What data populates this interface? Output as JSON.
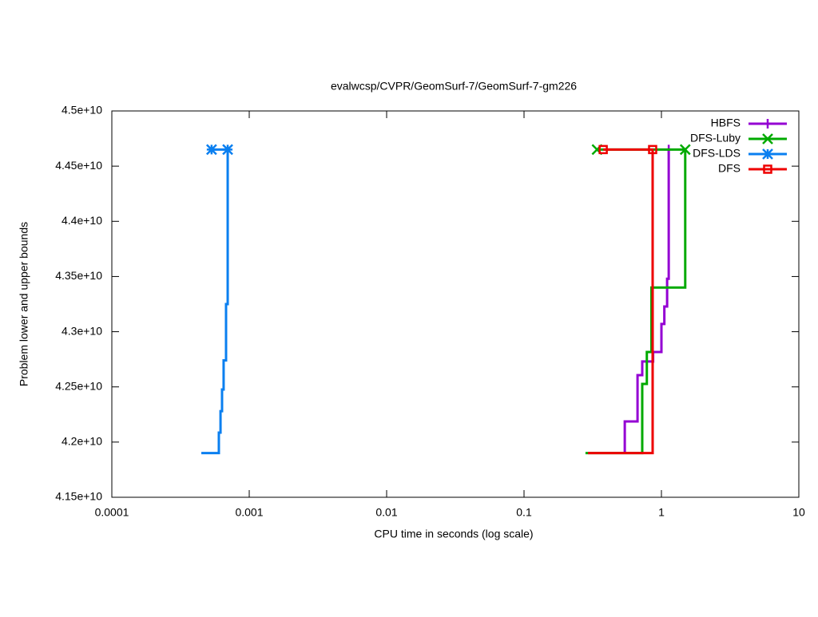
{
  "chart_data": {
    "type": "line",
    "title": "evalwcsp/CVPR/GeomSurf-7/GeomSurf-7-gm226",
    "xlabel": "CPU time in seconds (log scale)",
    "ylabel": "Problem lower and upper bounds",
    "xlog": true,
    "xlim": [
      0.0001,
      10
    ],
    "ylim": [
      41500000000,
      45000000000
    ],
    "xticks": [
      0.0001,
      0.001,
      0.01,
      0.1,
      1,
      10
    ],
    "yticks": [
      {
        "value": 41500000000,
        "label": "4.15e+10"
      },
      {
        "value": 42000000000,
        "label": "4.2e+10"
      },
      {
        "value": 42500000000,
        "label": "4.25e+10"
      },
      {
        "value": 43000000000,
        "label": "4.3e+10"
      },
      {
        "value": 43500000000,
        "label": "4.35e+10"
      },
      {
        "value": 44000000000,
        "label": "4.4e+10"
      },
      {
        "value": 44500000000,
        "label": "4.45e+10"
      },
      {
        "value": 45000000000,
        "label": "4.5e+10"
      }
    ],
    "legend": "top-right",
    "series": [
      {
        "name": "HBFS",
        "color": "#9400d3",
        "marker": "plus",
        "x": [
          0.541,
          0.541,
          0.67,
          0.67,
          0.725,
          0.725,
          0.87,
          0.87,
          1.0,
          1.0,
          1.05,
          1.05,
          1.1,
          1.1,
          1.13,
          1.13
        ],
        "values": [
          41900000000,
          42187000000,
          42187000000,
          42606000000,
          42606000000,
          42730000000,
          42730000000,
          42816000000,
          42816000000,
          43070000000,
          43070000000,
          43228000000,
          43228000000,
          43480000000,
          43480000000,
          44650000000
        ]
      },
      {
        "name": "DFS-Luby",
        "color": "#00aa00",
        "marker": "cross",
        "x": [
          0.28,
          0.725,
          0.725,
          0.783,
          0.783,
          0.846,
          0.846,
          1.49,
          1.49,
          1.49,
          0.34
        ],
        "values": [
          41900000000,
          41900000000,
          42527000000,
          42527000000,
          42816000000,
          42816000000,
          43400000000,
          43400000000,
          43470000000,
          44650000000,
          44650000000
        ]
      },
      {
        "name": "DFS-LDS",
        "color": "#0a7ff0",
        "marker": "star",
        "x": [
          0.000448,
          0.000601,
          0.000601,
          0.000618,
          0.000618,
          0.000634,
          0.000634,
          0.000651,
          0.000651,
          0.000678,
          0.000678,
          0.000697,
          0.000697,
          0.000532
        ],
        "values": [
          41900000000,
          41900000000,
          42086000000,
          42086000000,
          42280000000,
          42280000000,
          42476000000,
          42476000000,
          42740000000,
          42740000000,
          43250000000,
          43250000000,
          44650000000,
          44650000000
        ]
      },
      {
        "name": "DFS",
        "color": "#ee0000",
        "marker": "square",
        "x": [
          0.292,
          0.863,
          0.863,
          0.377
        ],
        "values": [
          41900000000,
          41900000000,
          44650000000,
          44650000000
        ]
      }
    ]
  }
}
